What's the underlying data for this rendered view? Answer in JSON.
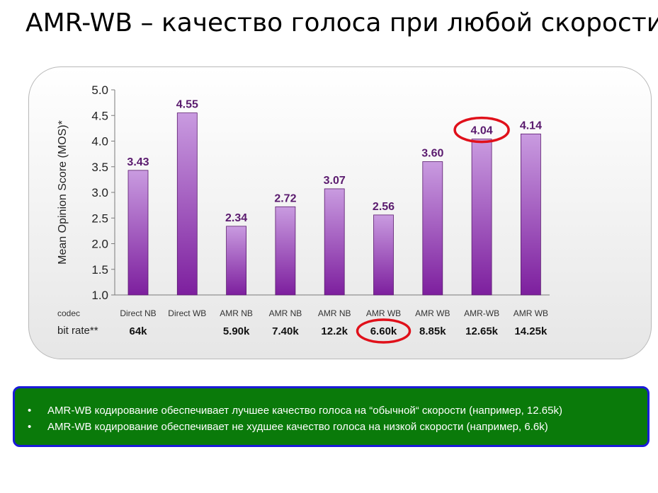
{
  "title": "AMR-WB – качество голоса при любой скорости",
  "chart_data": {
    "type": "bar",
    "ylabel": "Mean Opinion Score (MOS)*",
    "ylim": [
      1.0,
      5.0
    ],
    "yticks": [
      "1.0",
      "1.5",
      "2.0",
      "2.5",
      "3.0",
      "3.5",
      "4.0",
      "4.5",
      "5.0"
    ],
    "row_labels": {
      "codec": "codec",
      "bitrate": "bit rate**"
    },
    "codecs": [
      "Direct NB",
      "Direct WB",
      "AMR NB",
      "AMR NB",
      "AMR NB",
      "AMR WB",
      "AMR WB",
      "AMR-WB",
      "AMR WB"
    ],
    "bitrates": [
      "64k",
      "",
      "5.90k",
      "7.40k",
      "12.2k",
      "6.60k",
      "8.85k",
      "12.65k",
      "14.25k"
    ],
    "values": [
      3.43,
      4.55,
      2.34,
      2.72,
      3.07,
      2.56,
      3.6,
      4.04,
      4.14
    ],
    "value_labels": [
      "3.43",
      "4.55",
      "2.34",
      "2.72",
      "3.07",
      "2.56",
      "3.60",
      "4.04",
      "4.14"
    ],
    "highlight": {
      "value_index": 7,
      "bitrate_index": 5,
      "color": "#e0101a"
    },
    "colors": {
      "bar_top": "#c99be0",
      "bar_bottom": "#7d1f9e",
      "value_label": "#5a1a6e"
    },
    "grid": false
  },
  "notes": [
    "AMR-WB кодирование обеспечивает лучшее качество голоса на “обычной“  скорости (например,  12.65k)",
    "AMR-WB кодирование обеспечивает не худшее качество голоса на низкой скорости (например,  6.6k)"
  ],
  "bullet": "•"
}
